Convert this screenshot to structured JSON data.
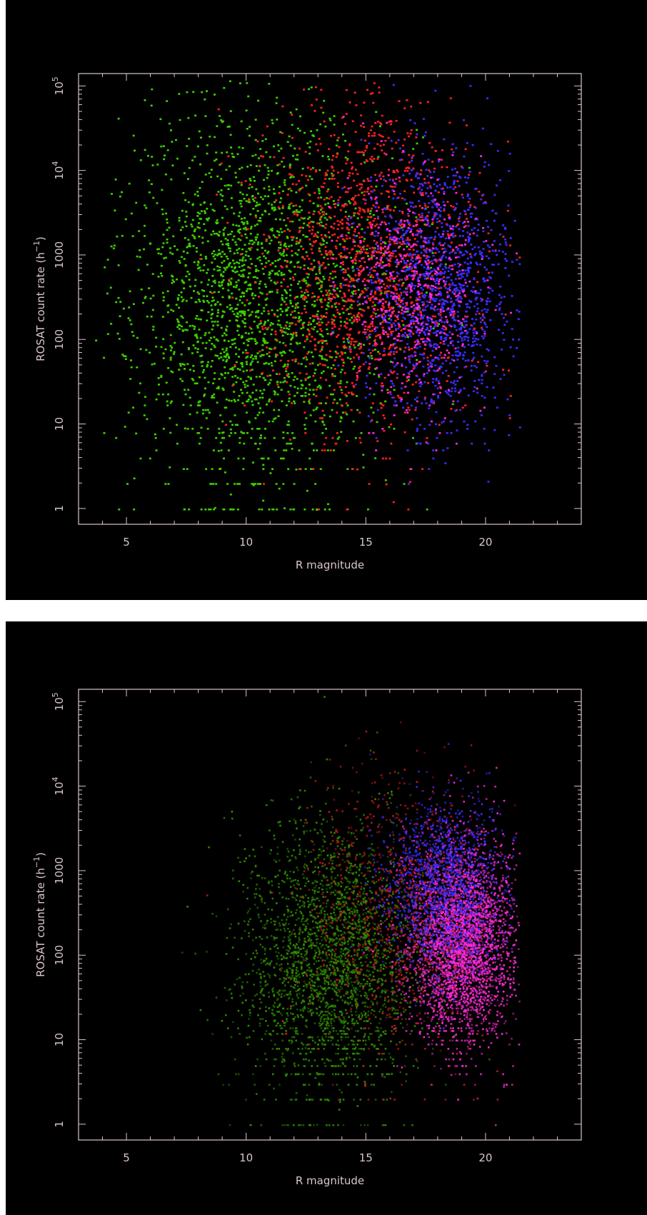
{
  "chart_data": [
    {
      "type": "scatter",
      "xlabel": "R magnitude",
      "ylabel": "ROSAT count rate (h",
      "ylabel_sup": "−1",
      "ylabel_close": ")",
      "xlim": [
        3,
        24
      ],
      "ylim": [
        0.65,
        140000
      ],
      "yscale": "log",
      "xticks": [
        5,
        10,
        15,
        20
      ],
      "xtick_labels": [
        "5",
        "10",
        "15",
        "20"
      ],
      "yticks": [
        {
          "value": 1,
          "base": "1",
          "exp": ""
        },
        {
          "value": 10,
          "base": "10",
          "exp": ""
        },
        {
          "value": 100,
          "base": "100",
          "exp": ""
        },
        {
          "value": 1000,
          "base": "1000",
          "exp": ""
        },
        {
          "value": 10000,
          "base": "10",
          "exp": "4"
        },
        {
          "value": 100000,
          "base": "10",
          "exp": "5"
        }
      ],
      "series": [
        {
          "color": "#3ccf00",
          "density": "sparse",
          "center": [
            10.5,
            300
          ],
          "spread": [
            2.8,
            1.1
          ],
          "count": 2200
        },
        {
          "color": "#ff2020",
          "density": "sparse",
          "center": [
            15.0,
            700
          ],
          "spread": [
            2.2,
            1.0
          ],
          "count": 1500
        },
        {
          "color": "#3a2cff",
          "density": "sparse",
          "center": [
            18.0,
            400
          ],
          "spread": [
            1.6,
            0.8
          ],
          "count": 1300
        },
        {
          "color": "#ff2bd6",
          "density": "sparse",
          "center": [
            16.8,
            500
          ],
          "spread": [
            1.4,
            0.7
          ],
          "count": 500
        }
      ]
    },
    {
      "type": "scatter",
      "xlabel": "R magnitude",
      "ylabel": "ROSAT count rate (h",
      "ylabel_sup": "−1",
      "ylabel_close": ")",
      "xlim": [
        3,
        24
      ],
      "ylim": [
        0.65,
        140000
      ],
      "yscale": "log",
      "xticks": [
        5,
        10,
        15,
        20
      ],
      "xtick_labels": [
        "5",
        "10",
        "15",
        "20"
      ],
      "yticks": [
        {
          "value": 1,
          "base": "1",
          "exp": ""
        },
        {
          "value": 10,
          "base": "10",
          "exp": ""
        },
        {
          "value": 100,
          "base": "100",
          "exp": ""
        },
        {
          "value": 1000,
          "base": "1000",
          "exp": ""
        },
        {
          "value": 10000,
          "base": "10",
          "exp": "4"
        },
        {
          "value": 100000,
          "base": "10",
          "exp": "5"
        }
      ],
      "series": [
        {
          "color": "#2f8f00",
          "density": "dense",
          "center": [
            13.5,
            80
          ],
          "spread": [
            1.8,
            0.8
          ],
          "count": 2600
        },
        {
          "color": "#ff2bd6",
          "density": "dense",
          "center": [
            19.0,
            150
          ],
          "spread": [
            1.1,
            0.6
          ],
          "count": 3200
        },
        {
          "color": "#3a2cff",
          "density": "dense",
          "center": [
            18.2,
            700
          ],
          "spread": [
            1.2,
            0.5
          ],
          "count": 1400
        },
        {
          "color": "#c01818",
          "density": "dense",
          "center": [
            16.0,
            300
          ],
          "spread": [
            1.8,
            0.8
          ],
          "count": 900
        }
      ]
    }
  ]
}
